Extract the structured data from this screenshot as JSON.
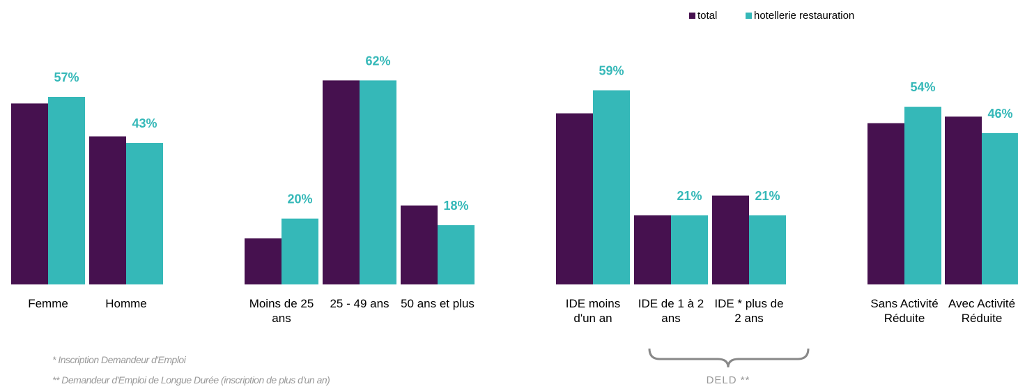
{
  "chart_data": {
    "type": "bar",
    "categories": [
      "Femme",
      "Homme",
      "Moins de 25 ans",
      "25 - 49 ans",
      "50 ans et plus",
      "IDE moins d'un an",
      "IDE de 1 à 2 ans",
      "IDE * plus de 2 ans",
      "Sans Activité Réduite",
      "Avec Activité Réduite"
    ],
    "series": [
      {
        "name": "total",
        "color": "#46114f",
        "values": [
          55,
          45,
          14,
          62,
          24,
          52,
          21,
          27,
          49,
          51
        ]
      },
      {
        "name": "hotellerie restauration",
        "color": "#35b8b8",
        "values": [
          57,
          43,
          20,
          62,
          18,
          59,
          21,
          21,
          54,
          46
        ],
        "value_labels": [
          "57%",
          "43%",
          "20%",
          "62%",
          "18%",
          "59%",
          "21%",
          "21%",
          "54%",
          "46%"
        ]
      }
    ],
    "annotation": "DELD **",
    "notes": [
      "* Inscription Demandeur d'Emploi",
      "** Demandeur d'Emploi de Longue Durée (inscription de plus d'un an)"
    ]
  }
}
